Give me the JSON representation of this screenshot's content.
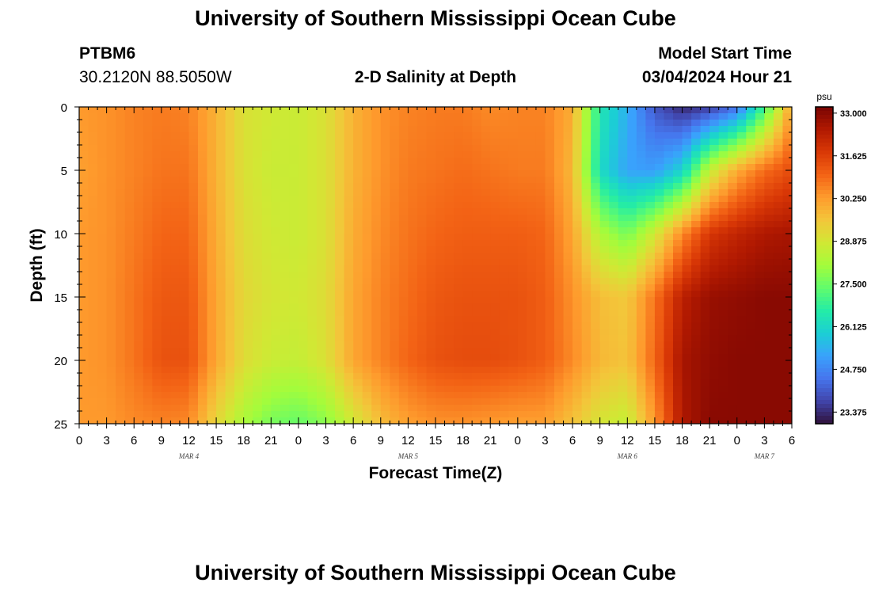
{
  "header": {
    "title": "University of Southern Mississippi Ocean Cube",
    "station_id": "PTBM6",
    "station_coords": "30.2120N  88.5050W",
    "plot_subtitle": "2-D Salinity at Depth",
    "model_start_label": "Model Start Time",
    "model_start_value": "03/04/2024 Hour 21"
  },
  "footer": {
    "title": "University of Southern Mississippi Ocean Cube"
  },
  "chart_data": {
    "type": "heatmap",
    "title": "2-D Salinity at Depth",
    "xlabel": "Forecast Time(Z)",
    "ylabel": "Depth (ft)",
    "x_ticks": [
      "0",
      "3",
      "6",
      "9",
      "12",
      "15",
      "18",
      "21",
      "0",
      "3",
      "6",
      "9",
      "12",
      "15",
      "18",
      "21",
      "0",
      "3",
      "6",
      "9",
      "12",
      "15",
      "18",
      "21",
      "0",
      "3",
      "6"
    ],
    "date_labels": [
      {
        "label": "MAR 4",
        "at_hour": 12
      },
      {
        "label": "MAR 5",
        "at_hour": 36
      },
      {
        "label": "MAR 6",
        "at_hour": 60
      },
      {
        "label": "MAR 7",
        "at_hour": 75
      }
    ],
    "x_range_hours": [
      0,
      78
    ],
    "y_ticks": [
      0,
      5,
      10,
      15,
      20,
      25
    ],
    "ylim": [
      0,
      25
    ],
    "colorbar": {
      "unit": "psu",
      "ticks": [
        "33.000",
        "31.625",
        "30.250",
        "28.875",
        "27.500",
        "26.125",
        "24.750",
        "23.375"
      ],
      "range": [
        23.0,
        33.2
      ]
    },
    "colors": {
      "stops": [
        "#30123b",
        "#4145ab",
        "#4675ed",
        "#39a2fc",
        "#1bcfd4",
        "#24eca6",
        "#61fc6c",
        "#a4fc3b",
        "#d1e834",
        "#f3c63a",
        "#fe9b2d",
        "#f36315",
        "#d93806",
        "#b11901",
        "#7a0402"
      ]
    },
    "salinity_grid": {
      "columns_hours": [
        0,
        3,
        6,
        9,
        12,
        15,
        18,
        21,
        24,
        27,
        30,
        33,
        36,
        39,
        42,
        45,
        48,
        51,
        54,
        57,
        60,
        63,
        66,
        69,
        72,
        75,
        78
      ],
      "rows_depth_ft": [
        0,
        5,
        10,
        15,
        20,
        25
      ],
      "values": [
        [
          30.3,
          30.4,
          30.6,
          30.7,
          30.6,
          29.9,
          29.0,
          28.8,
          28.7,
          29.0,
          29.9,
          30.4,
          30.6,
          30.7,
          30.7,
          30.5,
          30.6,
          30.6,
          30.0,
          26.5,
          25.4,
          24.0,
          23.3,
          23.6,
          24.4,
          27.0,
          30.2
        ],
        [
          30.2,
          30.4,
          30.6,
          30.8,
          30.8,
          29.9,
          29.0,
          28.7,
          28.7,
          29.0,
          29.9,
          30.4,
          30.7,
          30.8,
          30.9,
          30.8,
          30.7,
          30.7,
          29.8,
          26.2,
          25.2,
          25.1,
          26.0,
          28.6,
          30.0,
          30.9,
          31.4
        ],
        [
          30.3,
          30.4,
          30.7,
          31.0,
          31.0,
          30.0,
          29.1,
          28.8,
          28.7,
          29.0,
          30.0,
          30.5,
          30.8,
          31.0,
          31.1,
          31.1,
          31.1,
          31.0,
          30.1,
          28.3,
          27.6,
          28.8,
          30.5,
          31.8,
          32.2,
          32.5,
          32.6
        ],
        [
          30.3,
          30.4,
          30.8,
          31.2,
          31.2,
          30.1,
          29.2,
          28.9,
          28.8,
          29.1,
          30.1,
          30.6,
          30.9,
          31.2,
          31.3,
          31.3,
          31.3,
          31.1,
          30.4,
          29.7,
          29.5,
          30.8,
          32.3,
          32.8,
          32.9,
          33.0,
          33.0
        ],
        [
          30.3,
          30.4,
          30.8,
          31.3,
          31.3,
          30.1,
          29.1,
          28.7,
          28.6,
          29.0,
          30.1,
          30.6,
          31.0,
          31.3,
          31.4,
          31.4,
          31.3,
          31.1,
          30.5,
          29.8,
          29.6,
          31.0,
          32.6,
          32.9,
          33.0,
          33.0,
          33.0
        ],
        [
          30.3,
          30.3,
          30.5,
          30.6,
          30.5,
          29.2,
          28.2,
          27.6,
          27.4,
          27.8,
          28.8,
          29.7,
          30.2,
          30.4,
          30.4,
          30.3,
          30.2,
          30.2,
          29.6,
          28.9,
          28.6,
          30.3,
          32.5,
          33.0,
          33.0,
          33.0,
          33.0
        ]
      ]
    },
    "grid": false,
    "legend": "colorbar-right"
  }
}
